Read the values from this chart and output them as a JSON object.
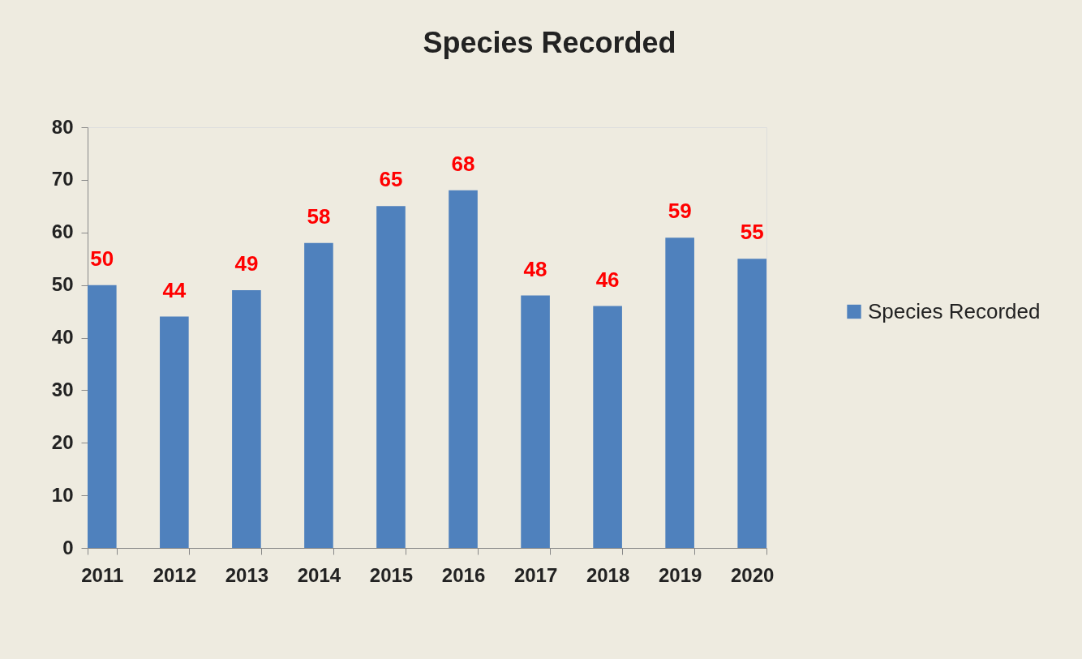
{
  "chart_data": {
    "type": "bar",
    "title": "Species Recorded",
    "categories": [
      "2011",
      "2012",
      "2013",
      "2014",
      "2015",
      "2016",
      "2017",
      "2018",
      "2019",
      "2020"
    ],
    "series": [
      {
        "name": "Species Recorded",
        "color": "#4f81bd",
        "values": [
          50,
          44,
          49,
          58,
          65,
          68,
          48,
          46,
          59,
          55
        ]
      }
    ],
    "ylim": [
      0,
      80
    ],
    "yticks": [
      0,
      10,
      20,
      30,
      40,
      50,
      60,
      70,
      80
    ],
    "data_labels": true,
    "legend": "right",
    "grid": false
  }
}
